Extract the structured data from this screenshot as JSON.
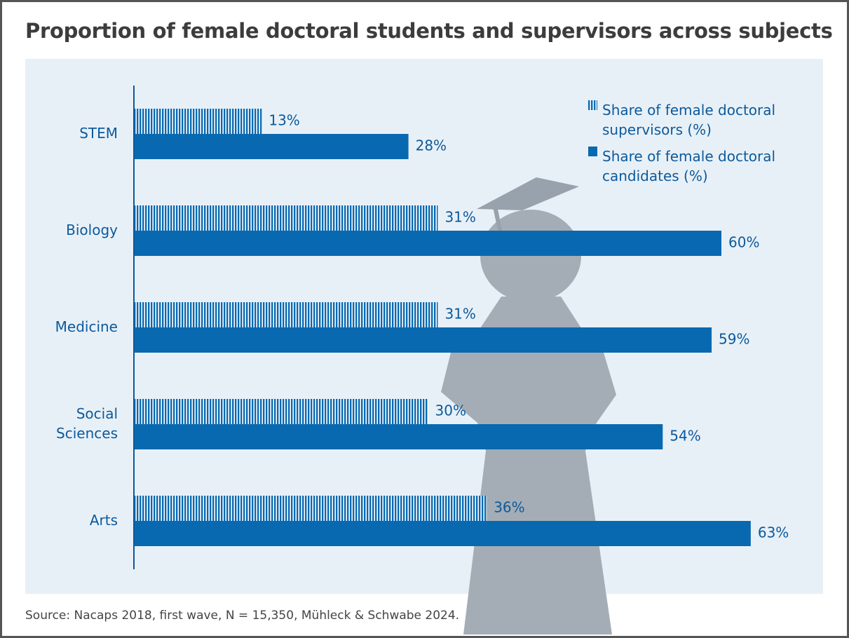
{
  "chart_data": {
    "type": "bar",
    "orientation": "horizontal",
    "title": "Proportion of female doctoral students and supervisors across subjects",
    "categories": [
      "STEM",
      "Biology",
      "Medicine",
      "Social Sciences",
      "Arts"
    ],
    "series": [
      {
        "name": "Share of female doctoral supervisors (%)",
        "color": "#0969b0",
        "hatch": "vertical",
        "values": [
          13,
          31,
          31,
          30,
          36
        ],
        "value_labels": [
          "13%",
          "31%",
          "31%",
          "30%",
          "36%"
        ]
      },
      {
        "name": "Share of female doctoral candidates (%)",
        "color": "#0969b0",
        "values": [
          28,
          60,
          59,
          54,
          63
        ],
        "value_labels": [
          "28%",
          "60%",
          "59%",
          "54%",
          "63%"
        ]
      }
    ],
    "legend": "top-right",
    "source": "Source: Nacaps 2018, first wave, N = 15,350, Mühleck & Schwabe 2024."
  }
}
